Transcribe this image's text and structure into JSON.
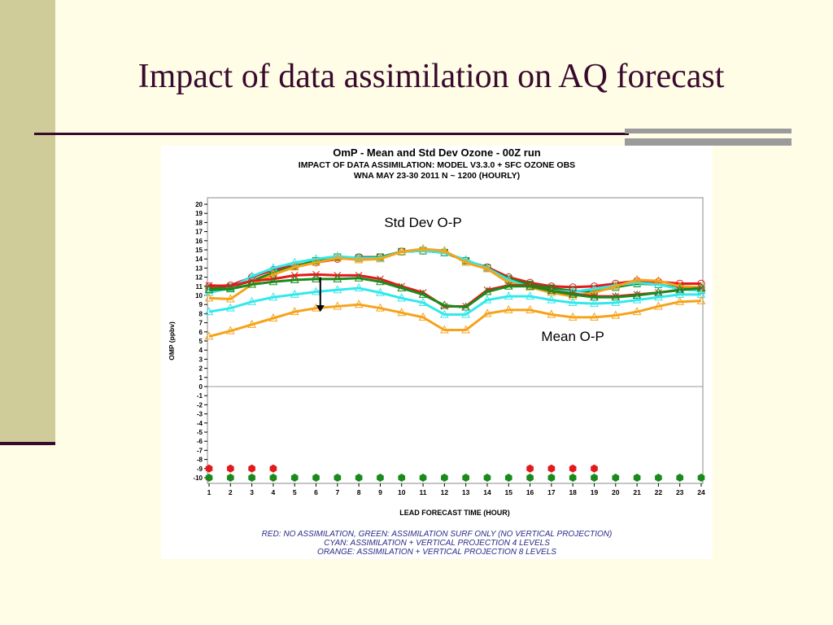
{
  "slide": {
    "title": "Impact of data assimilation on AQ forecast"
  },
  "chart_data": {
    "type": "line",
    "title": "OmP - Mean and Std Dev Ozone - 00Z run",
    "subtitle_lines": [
      "IMPACT OF DATA ASSIMILATION: MODEL V3.3.0 + SFC OZONE OBS",
      "WNA MAY 23-30 2011 N ~ 1200 (HOURLY)"
    ],
    "xlabel": "LEAD FORECAST TIME (HOUR)",
    "ylabel": "OMP (ppbv)",
    "x": [
      1,
      2,
      3,
      4,
      5,
      6,
      7,
      8,
      9,
      10,
      11,
      12,
      13,
      14,
      15,
      16,
      17,
      18,
      19,
      20,
      21,
      22,
      23,
      24
    ],
    "xlim": [
      1,
      24
    ],
    "ylim": [
      -10,
      20
    ],
    "yticks": [
      20,
      19,
      18,
      17,
      16,
      15,
      14,
      13,
      12,
      11,
      10,
      9,
      8,
      7,
      6,
      5,
      4,
      3,
      2,
      1,
      0,
      -1,
      -2,
      -3,
      -4,
      -5,
      -6,
      -7,
      -8,
      -9,
      -10
    ],
    "zero_line": true,
    "grid": false,
    "series": [
      {
        "group": "std",
        "color": "#e31a1c",
        "marker": "circle",
        "values": [
          11.0,
          11.1,
          12.0,
          12.8,
          13.3,
          13.6,
          14.0,
          14.2,
          14.2,
          14.8,
          14.9,
          14.7,
          13.8,
          13.1,
          12.0,
          11.4,
          11.0,
          10.9,
          11.0,
          11.3,
          11.6,
          11.5,
          11.3,
          11.3
        ]
      },
      {
        "group": "std",
        "color": "#1a8a1a",
        "marker": "square",
        "values": [
          10.7,
          10.9,
          11.6,
          12.5,
          13.2,
          13.8,
          14.2,
          14.1,
          14.2,
          14.8,
          14.9,
          14.7,
          13.8,
          13.0,
          11.8,
          11.2,
          10.8,
          10.5,
          10.4,
          10.9,
          11.3,
          11.2,
          10.8,
          10.6
        ]
      },
      {
        "group": "std",
        "color": "#33e8ec",
        "marker": "triangle",
        "values": [
          10.3,
          10.8,
          12.1,
          13.0,
          13.6,
          14.0,
          14.3,
          14.1,
          14.1,
          14.8,
          14.9,
          14.7,
          13.9,
          13.0,
          11.7,
          10.9,
          10.5,
          10.4,
          10.7,
          11.1,
          11.4,
          11.2,
          10.7,
          10.5
        ]
      },
      {
        "group": "std",
        "color": "#f5a31a",
        "marker": "triangle",
        "values": [
          9.7,
          9.6,
          11.2,
          12.3,
          13.1,
          13.6,
          14.1,
          13.9,
          14.0,
          14.8,
          15.1,
          14.9,
          13.6,
          12.9,
          11.4,
          10.9,
          10.3,
          9.9,
          10.3,
          11.0,
          11.7,
          11.6,
          11.0,
          10.9
        ]
      },
      {
        "group": "mean",
        "color": "#e31a1c",
        "marker": "x",
        "values": [
          11.1,
          11.0,
          11.6,
          11.8,
          12.2,
          12.3,
          12.2,
          12.2,
          11.8,
          11.0,
          10.3,
          8.8,
          8.8,
          10.6,
          11.1,
          11.1,
          10.5,
          10.2,
          9.9,
          9.9,
          10.1,
          10.3,
          10.6,
          10.8
        ]
      },
      {
        "group": "mean",
        "color": "#1a8a1a",
        "marker": "triangle",
        "values": [
          10.6,
          10.7,
          11.2,
          11.5,
          11.7,
          11.8,
          11.8,
          11.9,
          11.5,
          10.8,
          10.1,
          8.9,
          8.7,
          10.4,
          11.0,
          11.0,
          10.5,
          10.1,
          9.8,
          9.8,
          10.0,
          10.3,
          10.6,
          10.8
        ]
      },
      {
        "group": "mean",
        "color": "#33e8ec",
        "marker": "triangle",
        "values": [
          8.2,
          8.6,
          9.3,
          9.8,
          10.1,
          10.4,
          10.6,
          10.8,
          10.3,
          9.7,
          9.2,
          7.9,
          7.9,
          9.5,
          9.9,
          9.9,
          9.5,
          9.2,
          9.1,
          9.2,
          9.5,
          9.8,
          10.1,
          10.1
        ]
      },
      {
        "group": "mean",
        "color": "#f5a31a",
        "marker": "triangle",
        "values": [
          5.5,
          6.1,
          6.8,
          7.5,
          8.2,
          8.6,
          8.8,
          9.0,
          8.6,
          8.1,
          7.6,
          6.2,
          6.2,
          8.0,
          8.4,
          8.4,
          7.9,
          7.6,
          7.6,
          7.8,
          8.2,
          8.8,
          9.3,
          9.4
        ]
      }
    ],
    "significance_markers": [
      {
        "color": "#e31a1c",
        "y": -9,
        "hours": [
          1,
          2,
          3,
          4,
          16,
          17,
          18,
          19
        ]
      },
      {
        "color": "#1a8a1a",
        "y": -10,
        "hours": [
          1,
          2,
          3,
          4,
          5,
          6,
          7,
          8,
          9,
          10,
          11,
          12,
          13,
          14,
          15,
          16,
          17,
          18,
          19,
          20,
          21,
          22,
          23,
          24
        ]
      }
    ],
    "annotations": [
      {
        "text": "Std Dev O-P",
        "x": 11,
        "y": 17.5
      },
      {
        "text": "Mean O-P",
        "x": 18,
        "y": 5.0
      }
    ],
    "arrow": {
      "x": 6.2,
      "y_from": 12.0,
      "y_to": 8.2
    },
    "legend_lines": [
      "RED: NO ASSIMILATION, GREEN: ASSIMILATION SURF ONLY (NO VERTICAL PROJECTION)",
      "CYAN: ASSIMILATION + VERTICAL PROJECTION 4 LEVELS",
      "ORANGE: ASSIMILATION + VERTICAL PROJECTION 8 LEVELS"
    ],
    "legend_placement": "bottom"
  }
}
